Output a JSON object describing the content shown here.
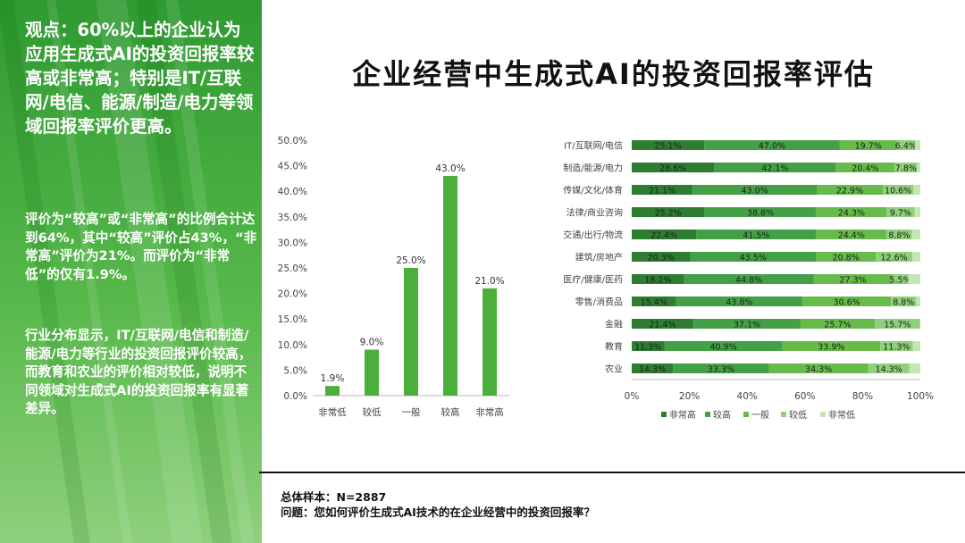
{
  "left_panel": {
    "headline": "观点：60%以上的企业认为应用生成式AI的投资回报率较高或非常高；特别是IT/互联网/电信、能源/制造/电力等领域回报率评价更高。",
    "para1": "评价为“较高”或“非常高”的比例合计达到64%，其中“较高”评价占43%，“非常高”评价为21%。而评价为“非常低”的仅有1.9%。",
    "para2": "行业分布显示，IT/互联网/电信和制造/能源/电力等行业的投资回报评价较高，而教育和农业的评价相对较低，说明不同领域对生成式AI的投资回报率有显著差异。"
  },
  "title": "企业经营中生成式AI的投资回报率评估",
  "footer": {
    "sample": "总体样本：N=2887",
    "question": "问题：您如何评价生成式AI技术的在企业经营中的投资回报率？"
  },
  "chart_data": [
    {
      "type": "bar",
      "categories": [
        "非常低",
        "较低",
        "一般",
        "较高",
        "非常高"
      ],
      "values": [
        1.9,
        9.0,
        25.0,
        43.0,
        21.0
      ],
      "value_labels": [
        "1.9%",
        "9.0%",
        "25.0%",
        "43.0%",
        "21.0%"
      ],
      "ylim": [
        0,
        50
      ],
      "yticks": [
        "0.0%",
        "5.0%",
        "10.0%",
        "15.0%",
        "20.0%",
        "25.0%",
        "30.0%",
        "35.0%",
        "40.0%",
        "45.0%",
        "50.0%"
      ],
      "bar_color": "#4caf3c",
      "grid": false
    },
    {
      "type": "bar",
      "orientation": "horizontal",
      "stacked": true,
      "categories": [
        "IT/互联网/电信",
        "制造/能源/电力",
        "传媒/文化/体育",
        "法律/商业咨询",
        "交通/出行/物流",
        "建筑/房地产",
        "医疗/健康/医药",
        "零售/消费品",
        "金融",
        "教育",
        "农业"
      ],
      "series": [
        {
          "name": "非常高",
          "color": "#2e7d32",
          "values": [
            25.1,
            28.6,
            21.1,
            25.2,
            22.4,
            20.3,
            18.2,
            15.4,
            21.4,
            11.3,
            14.3
          ],
          "labels": [
            "25.1%",
            "28.6%",
            "21.1%",
            "25.2%",
            "22.4%",
            "20.3%",
            "18.2%",
            "15.4%",
            "21.4%",
            "11.3%",
            "14.3%"
          ]
        },
        {
          "name": "较高",
          "color": "#43a047",
          "values": [
            47.0,
            42.1,
            43.0,
            38.8,
            41.5,
            43.5,
            44.8,
            43.8,
            37.1,
            40.9,
            33.3
          ],
          "labels": [
            "47.0%",
            "42.1%",
            "43.0%",
            "38.8%",
            "41.5%",
            "43.5%",
            "44.8%",
            "43.8%",
            "37.1%",
            "40.9%",
            "33.3%"
          ]
        },
        {
          "name": "一般",
          "color": "#66bb4a",
          "values": [
            19.7,
            20.4,
            22.9,
            24.3,
            24.4,
            20.8,
            27.3,
            30.6,
            25.7,
            33.9,
            34.3
          ],
          "labels": [
            "19.7%",
            "20.4%",
            "22.9%",
            "24.3%",
            "24.4%",
            "20.8%",
            "27.3%",
            "30.6%",
            "25.7%",
            "33.9%",
            "34.3%"
          ]
        },
        {
          "name": "较低",
          "color": "#8fd07a",
          "values": [
            6.4,
            7.8,
            10.6,
            9.7,
            8.8,
            12.6,
            5.5,
            8.8,
            15.7,
            11.3,
            14.3
          ],
          "labels": [
            "6.4%",
            "7.8%",
            "10.6%",
            "9.7%",
            "8.8%",
            "12.6%",
            "5.5%",
            "8.8%",
            "15.7%",
            "11.3%",
            "14.3%"
          ]
        },
        {
          "name": "非常低",
          "color": "#c3e6b5",
          "values": [
            1.8,
            1.1,
            2.4,
            2.0,
            2.9,
            2.8,
            4.2,
            1.4,
            0.1,
            2.6,
            3.8
          ],
          "labels": [
            "",
            "",
            "",
            "",
            "",
            "",
            "",
            "",
            "",
            "",
            ""
          ]
        }
      ],
      "xlim": [
        0,
        100
      ],
      "xticks": [
        "0%",
        "20%",
        "40%",
        "60%",
        "80%",
        "100%"
      ],
      "legend": "bottom",
      "grid": false
    }
  ]
}
